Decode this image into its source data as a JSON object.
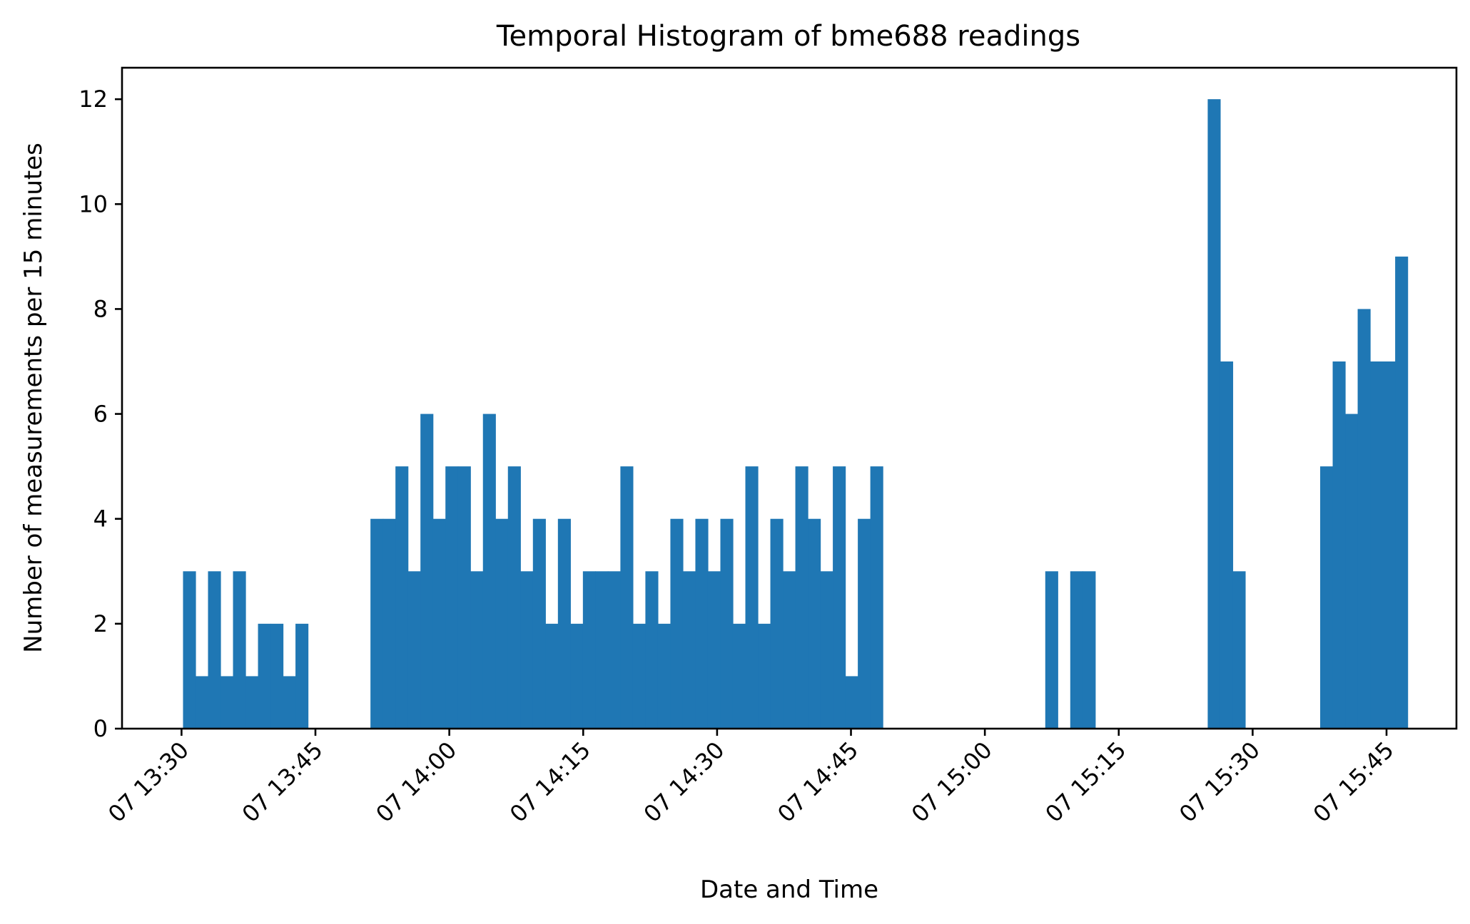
{
  "chart_data": {
    "type": "bar",
    "title": "Temporal Histogram of bme688 readings",
    "xlabel": "Date and Time",
    "ylabel": "Number of measurements per 15 minutes",
    "ylim": [
      0,
      12.6
    ],
    "yticks": [
      0,
      2,
      4,
      6,
      8,
      10,
      12
    ],
    "xticks": [
      {
        "time": "13:30",
        "label": "07 13:30"
      },
      {
        "time": "13:45",
        "label": "07 13:45"
      },
      {
        "time": "14:00",
        "label": "07 14:00"
      },
      {
        "time": "14:15",
        "label": "07 14:15"
      },
      {
        "time": "14:30",
        "label": "07 14:30"
      },
      {
        "time": "14:45",
        "label": "07 14:45"
      },
      {
        "time": "15:00",
        "label": "07 15:00"
      },
      {
        "time": "15:15",
        "label": "07 15:15"
      },
      {
        "time": "15:30",
        "label": "07 15:30"
      },
      {
        "time": "15:45",
        "label": "07 15:45"
      }
    ],
    "xlim": [
      "13:23:20",
      "15:52:50"
    ],
    "bin_start": "13:30:10",
    "bin_minutes": 1.4,
    "bar_color": "#1f77b4",
    "grid": false,
    "counts": [
      3,
      1,
      3,
      1,
      3,
      1,
      2,
      2,
      1,
      2,
      0,
      0,
      0,
      0,
      0,
      4,
      4,
      5,
      3,
      6,
      4,
      5,
      5,
      3,
      6,
      4,
      5,
      3,
      4,
      2,
      4,
      2,
      3,
      3,
      3,
      5,
      2,
      3,
      2,
      4,
      3,
      4,
      3,
      4,
      2,
      5,
      2,
      4,
      3,
      5,
      4,
      3,
      5,
      1,
      4,
      5,
      0,
      0,
      0,
      0,
      0,
      0,
      0,
      0,
      0,
      0,
      0,
      0,
      0,
      3,
      0,
      3,
      3,
      0,
      0,
      0,
      0,
      0,
      0,
      0,
      0,
      0,
      12,
      7,
      3,
      0,
      0,
      0,
      0,
      0,
      0,
      5,
      7,
      6,
      8,
      7,
      7,
      9
    ]
  }
}
